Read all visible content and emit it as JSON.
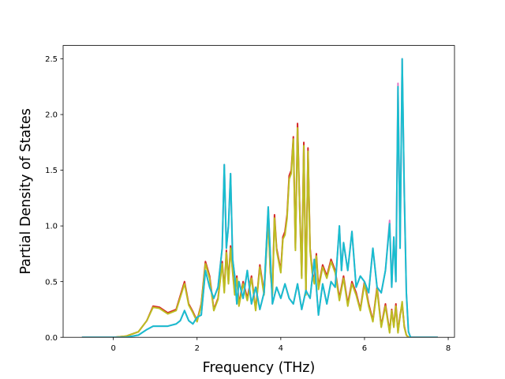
{
  "chart_data": {
    "type": "line",
    "title": "",
    "xlabel": "Frequency (THz)",
    "ylabel": "Partial Density of States",
    "xlim": [
      -1.2,
      8.15
    ],
    "ylim": [
      0,
      2.62
    ],
    "xticks": [
      0,
      2,
      4,
      6,
      8
    ],
    "yticks": [
      0.0,
      0.5,
      1.0,
      1.5,
      2.0,
      2.5
    ],
    "xtick_labels": [
      "0",
      "2",
      "4",
      "6",
      "8"
    ],
    "ytick_labels": [
      "0.0",
      "0.5",
      "1.0",
      "1.5",
      "2.0",
      "2.5"
    ],
    "grid": false,
    "legend": "none",
    "series": [
      {
        "color": "#d62728",
        "x": [
          -0.75,
          0.0,
          0.3,
          0.6,
          0.8,
          0.95,
          1.1,
          1.3,
          1.5,
          1.7,
          1.8,
          1.9,
          2.0,
          2.1,
          2.2,
          2.3,
          2.4,
          2.5,
          2.6,
          2.65,
          2.7,
          2.75,
          2.8,
          2.85,
          2.9,
          2.95,
          3.0,
          3.1,
          3.2,
          3.3,
          3.4,
          3.5,
          3.6,
          3.7,
          3.75,
          3.8,
          3.85,
          3.9,
          4.0,
          4.05,
          4.1,
          4.15,
          4.2,
          4.25,
          4.3,
          4.35,
          4.4,
          4.45,
          4.5,
          4.55,
          4.6,
          4.65,
          4.7,
          4.75,
          4.8,
          4.85,
          4.9,
          5.0,
          5.1,
          5.2,
          5.3,
          5.4,
          5.5,
          5.6,
          5.7,
          5.8,
          5.9,
          6.0,
          6.1,
          6.2,
          6.3,
          6.4,
          6.5,
          6.6,
          6.65,
          6.7,
          6.75,
          6.8,
          6.85,
          6.9,
          6.95,
          7.0,
          7.05,
          7.1,
          7.2,
          7.75
        ],
        "values": [
          0.0,
          0.0,
          0.01,
          0.05,
          0.15,
          0.28,
          0.27,
          0.22,
          0.25,
          0.5,
          0.3,
          0.23,
          0.15,
          0.3,
          0.68,
          0.55,
          0.25,
          0.35,
          0.68,
          0.42,
          0.78,
          0.5,
          0.82,
          0.6,
          0.4,
          0.55,
          0.3,
          0.5,
          0.35,
          0.55,
          0.25,
          0.65,
          0.4,
          1.08,
          0.6,
          0.4,
          1.1,
          0.8,
          0.6,
          0.9,
          0.95,
          1.1,
          1.45,
          1.5,
          1.8,
          0.8,
          1.92,
          1.2,
          0.55,
          1.75,
          0.4,
          1.7,
          0.8,
          0.6,
          0.5,
          0.75,
          0.45,
          0.65,
          0.55,
          0.7,
          0.6,
          0.35,
          0.55,
          0.3,
          0.5,
          0.4,
          0.25,
          0.5,
          0.3,
          0.15,
          0.45,
          0.1,
          0.3,
          0.05,
          0.25,
          0.1,
          0.3,
          0.05,
          0.2,
          0.3,
          0.1,
          0.02,
          0.0,
          0.0,
          0.0,
          0.0
        ]
      },
      {
        "color": "#bcbd22",
        "x": [
          -0.75,
          0.0,
          0.3,
          0.6,
          0.8,
          0.95,
          1.1,
          1.3,
          1.5,
          1.7,
          1.8,
          1.9,
          2.0,
          2.1,
          2.2,
          2.3,
          2.4,
          2.5,
          2.6,
          2.65,
          2.7,
          2.75,
          2.8,
          2.85,
          2.9,
          2.95,
          3.0,
          3.1,
          3.2,
          3.3,
          3.4,
          3.5,
          3.6,
          3.7,
          3.75,
          3.8,
          3.85,
          3.9,
          4.0,
          4.05,
          4.1,
          4.15,
          4.2,
          4.25,
          4.3,
          4.35,
          4.4,
          4.45,
          4.5,
          4.55,
          4.6,
          4.65,
          4.7,
          4.75,
          4.8,
          4.85,
          4.9,
          5.0,
          5.1,
          5.2,
          5.3,
          5.4,
          5.5,
          5.6,
          5.7,
          5.8,
          5.9,
          6.0,
          6.1,
          6.2,
          6.3,
          6.4,
          6.5,
          6.6,
          6.65,
          6.7,
          6.75,
          6.8,
          6.85,
          6.9,
          6.95,
          7.0,
          7.05,
          7.1,
          7.2,
          7.75
        ],
        "values": [
          0.0,
          0.0,
          0.01,
          0.05,
          0.15,
          0.27,
          0.26,
          0.21,
          0.24,
          0.48,
          0.29,
          0.22,
          0.14,
          0.29,
          0.66,
          0.53,
          0.24,
          0.34,
          0.66,
          0.4,
          0.76,
          0.48,
          0.8,
          0.58,
          0.38,
          0.53,
          0.28,
          0.48,
          0.33,
          0.53,
          0.24,
          0.63,
          0.38,
          1.05,
          0.58,
          0.38,
          1.07,
          0.78,
          0.58,
          0.88,
          0.92,
          1.07,
          1.42,
          1.47,
          1.78,
          0.78,
          1.88,
          1.17,
          0.53,
          1.72,
          0.38,
          1.67,
          0.78,
          0.58,
          0.48,
          0.73,
          0.43,
          0.63,
          0.53,
          0.68,
          0.58,
          0.33,
          0.53,
          0.28,
          0.48,
          0.38,
          0.24,
          0.48,
          0.28,
          0.14,
          0.43,
          0.09,
          0.28,
          0.04,
          0.24,
          0.09,
          0.28,
          0.04,
          0.19,
          0.32,
          0.09,
          0.02,
          0.0,
          0.0,
          0.0,
          0.0
        ]
      },
      {
        "color": "#e377c2",
        "x": [
          -0.75,
          0.0,
          0.3,
          0.6,
          0.8,
          0.95,
          1.1,
          1.3,
          1.5,
          1.6,
          1.7,
          1.8,
          1.9,
          2.0,
          2.1,
          2.2,
          2.3,
          2.4,
          2.5,
          2.6,
          2.65,
          2.7,
          2.75,
          2.8,
          2.85,
          2.9,
          2.95,
          3.0,
          3.1,
          3.2,
          3.3,
          3.4,
          3.5,
          3.6,
          3.7,
          3.8,
          3.9,
          4.0,
          4.1,
          4.2,
          4.3,
          4.4,
          4.5,
          4.6,
          4.7,
          4.8,
          4.9,
          5.0,
          5.1,
          5.2,
          5.3,
          5.4,
          5.45,
          5.5,
          5.6,
          5.7,
          5.8,
          5.9,
          6.0,
          6.1,
          6.2,
          6.3,
          6.4,
          6.5,
          6.6,
          6.65,
          6.7,
          6.75,
          6.8,
          6.85,
          6.9,
          6.95,
          7.0,
          7.05,
          7.1,
          7.2,
          7.75
        ],
        "values": [
          0.0,
          0.0,
          0.0,
          0.02,
          0.07,
          0.1,
          0.1,
          0.1,
          0.12,
          0.15,
          0.24,
          0.15,
          0.12,
          0.18,
          0.2,
          0.6,
          0.45,
          0.35,
          0.45,
          0.8,
          1.55,
          0.8,
          1.0,
          1.47,
          0.7,
          0.55,
          0.3,
          0.5,
          0.35,
          0.6,
          0.3,
          0.45,
          0.25,
          0.4,
          1.17,
          0.3,
          0.45,
          0.35,
          0.48,
          0.35,
          0.3,
          0.48,
          0.25,
          0.42,
          0.35,
          0.7,
          0.2,
          0.48,
          0.3,
          0.5,
          0.45,
          1.0,
          0.6,
          0.85,
          0.6,
          0.95,
          0.45,
          0.55,
          0.5,
          0.4,
          0.8,
          0.45,
          0.4,
          0.6,
          1.05,
          0.45,
          0.9,
          0.5,
          2.28,
          0.8,
          2.5,
          1.3,
          0.4,
          0.05,
          0.0,
          0.0,
          0.0
        ]
      },
      {
        "color": "#17becf",
        "x": [
          -0.75,
          0.0,
          0.3,
          0.6,
          0.8,
          0.95,
          1.1,
          1.3,
          1.5,
          1.6,
          1.7,
          1.8,
          1.9,
          2.0,
          2.1,
          2.2,
          2.3,
          2.4,
          2.5,
          2.6,
          2.65,
          2.7,
          2.75,
          2.8,
          2.85,
          2.9,
          2.95,
          3.0,
          3.1,
          3.2,
          3.3,
          3.4,
          3.5,
          3.6,
          3.7,
          3.8,
          3.9,
          4.0,
          4.1,
          4.2,
          4.3,
          4.4,
          4.5,
          4.6,
          4.7,
          4.8,
          4.9,
          5.0,
          5.1,
          5.2,
          5.3,
          5.4,
          5.45,
          5.5,
          5.6,
          5.7,
          5.8,
          5.9,
          6.0,
          6.1,
          6.2,
          6.3,
          6.4,
          6.5,
          6.6,
          6.65,
          6.7,
          6.75,
          6.8,
          6.85,
          6.9,
          6.95,
          7.0,
          7.05,
          7.1,
          7.2,
          7.75
        ],
        "values": [
          0.0,
          0.0,
          0.0,
          0.02,
          0.07,
          0.1,
          0.1,
          0.1,
          0.12,
          0.15,
          0.24,
          0.15,
          0.12,
          0.18,
          0.2,
          0.6,
          0.45,
          0.35,
          0.45,
          0.8,
          1.55,
          0.8,
          1.0,
          1.47,
          0.7,
          0.55,
          0.3,
          0.5,
          0.35,
          0.6,
          0.3,
          0.45,
          0.25,
          0.4,
          1.17,
          0.3,
          0.45,
          0.35,
          0.48,
          0.35,
          0.3,
          0.48,
          0.25,
          0.42,
          0.35,
          0.7,
          0.2,
          0.48,
          0.3,
          0.5,
          0.45,
          1.0,
          0.6,
          0.85,
          0.6,
          0.95,
          0.45,
          0.55,
          0.5,
          0.4,
          0.8,
          0.45,
          0.4,
          0.6,
          1.02,
          0.45,
          0.9,
          0.5,
          2.25,
          0.8,
          2.5,
          1.3,
          0.4,
          0.05,
          0.0,
          0.0,
          0.0
        ]
      }
    ]
  }
}
